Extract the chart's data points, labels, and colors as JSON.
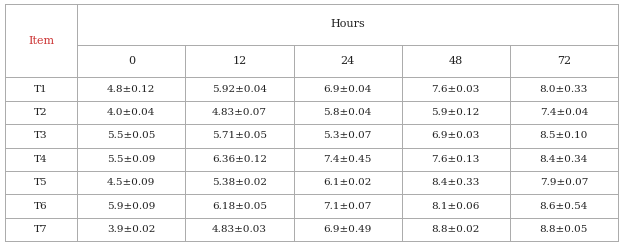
{
  "title": "Hours",
  "item_label": "Item",
  "item_label_color": "#cc3333",
  "columns": [
    "0",
    "12",
    "24",
    "48",
    "72"
  ],
  "rows": [
    "T1",
    "T2",
    "T3",
    "T4",
    "T5",
    "T6",
    "T7"
  ],
  "data": [
    [
      "4.8±0.12",
      "5.92±0.04",
      "6.9±0.04",
      "7.6±0.03",
      "8.0±0.33"
    ],
    [
      "4.0±0.04",
      "4.83±0.07",
      "5.8±0.04",
      "5.9±0.12",
      "7.4±0.04"
    ],
    [
      "5.5±0.05",
      "5.71±0.05",
      "5.3±0.07",
      "6.9±0.03",
      "8.5±0.10"
    ],
    [
      "5.5±0.09",
      "6.36±0.12",
      "7.4±0.45",
      "7.6±0.13",
      "8.4±0.34"
    ],
    [
      "4.5±0.09",
      "5.38±0.02",
      "6.1±0.02",
      "8.4±0.33",
      "7.9±0.07"
    ],
    [
      "5.9±0.09",
      "6.18±0.05",
      "7.1±0.07",
      "8.1±0.06",
      "8.6±0.54"
    ],
    [
      "3.9±0.02",
      "4.83±0.03",
      "6.9±0.49",
      "8.8±0.02",
      "8.8±0.05"
    ]
  ],
  "bg_color": "#ffffff",
  "text_color": "#222222",
  "line_color": "#aaaaaa",
  "font_size": 7.5,
  "header_font_size": 8.0,
  "fig_width": 6.21,
  "fig_height": 2.45,
  "dpi": 100
}
